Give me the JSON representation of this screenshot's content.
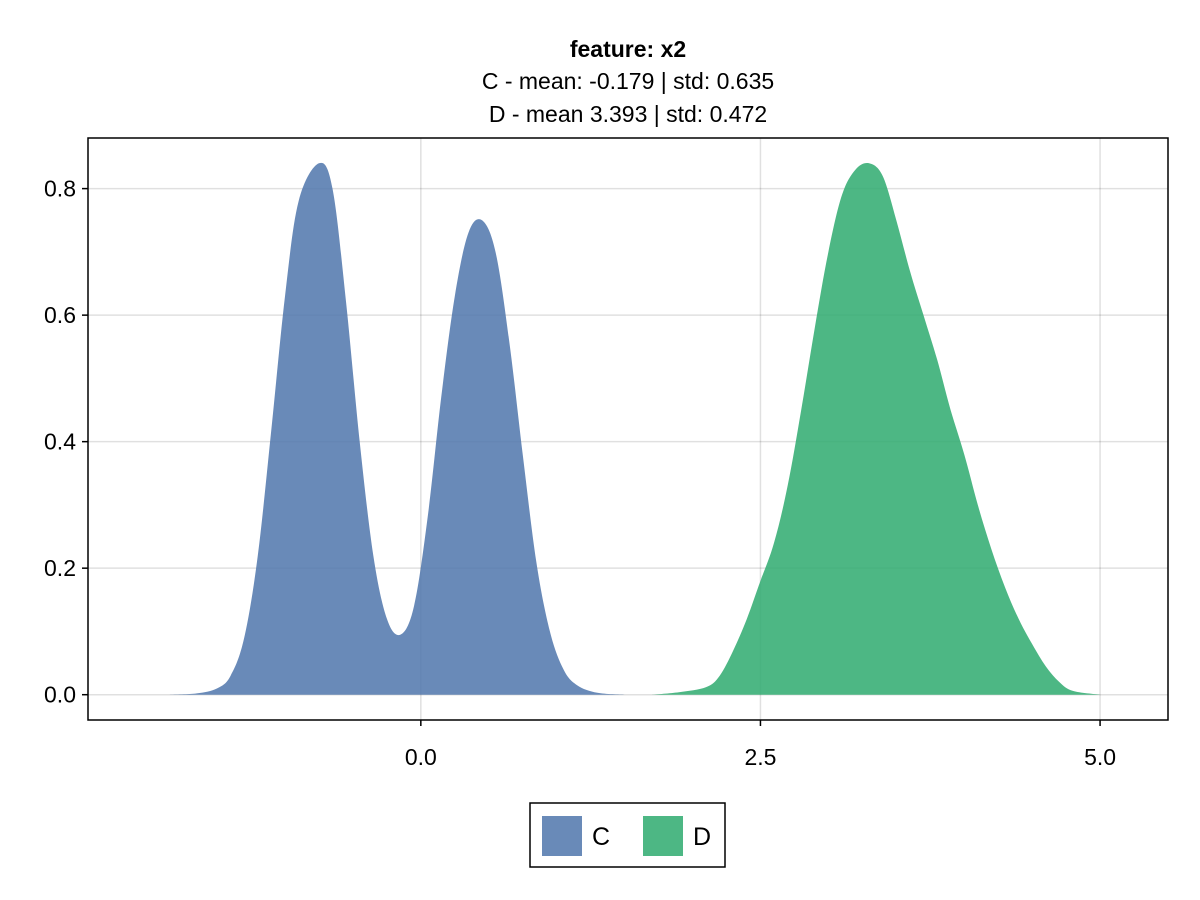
{
  "chart_data": {
    "type": "area",
    "title": "feature: x2",
    "subtitle_lines": [
      "C - mean: -0.179 | std: 0.635",
      "D - mean 3.393 | std: 0.472"
    ],
    "xlabel": "",
    "ylabel": "",
    "xlim": [
      -2.45,
      5.5
    ],
    "ylim": [
      -0.04,
      0.88
    ],
    "x_ticks": [
      0.0,
      2.5,
      5.0
    ],
    "x_tick_labels": [
      "0.0",
      "2.5",
      "5.0"
    ],
    "y_ticks": [
      0.0,
      0.2,
      0.4,
      0.6,
      0.8
    ],
    "y_tick_labels": [
      "0.0",
      "0.2",
      "0.4",
      "0.6",
      "0.8"
    ],
    "grid": true,
    "legend_position": "bottom-center",
    "series": [
      {
        "name": "C",
        "color": "#4f76ab",
        "points": [
          [
            -1.85,
            0.0
          ],
          [
            -1.65,
            0.002
          ],
          [
            -1.5,
            0.01
          ],
          [
            -1.4,
            0.03
          ],
          [
            -1.3,
            0.09
          ],
          [
            -1.2,
            0.22
          ],
          [
            -1.1,
            0.42
          ],
          [
            -1.0,
            0.63
          ],
          [
            -0.9,
            0.78
          ],
          [
            -0.75,
            0.84
          ],
          [
            -0.65,
            0.8
          ],
          [
            -0.55,
            0.62
          ],
          [
            -0.45,
            0.4
          ],
          [
            -0.35,
            0.22
          ],
          [
            -0.25,
            0.12
          ],
          [
            -0.15,
            0.095
          ],
          [
            -0.05,
            0.14
          ],
          [
            0.05,
            0.28
          ],
          [
            0.15,
            0.47
          ],
          [
            0.25,
            0.63
          ],
          [
            0.35,
            0.73
          ],
          [
            0.45,
            0.75
          ],
          [
            0.55,
            0.7
          ],
          [
            0.65,
            0.56
          ],
          [
            0.75,
            0.38
          ],
          [
            0.85,
            0.21
          ],
          [
            0.95,
            0.1
          ],
          [
            1.05,
            0.04
          ],
          [
            1.15,
            0.015
          ],
          [
            1.3,
            0.003
          ],
          [
            1.5,
            0.0
          ]
        ]
      },
      {
        "name": "D",
        "color": "#2eaa6e",
        "points": [
          [
            1.7,
            0.0
          ],
          [
            1.9,
            0.004
          ],
          [
            2.1,
            0.012
          ],
          [
            2.2,
            0.03
          ],
          [
            2.3,
            0.07
          ],
          [
            2.4,
            0.12
          ],
          [
            2.5,
            0.18
          ],
          [
            2.6,
            0.24
          ],
          [
            2.7,
            0.33
          ],
          [
            2.8,
            0.45
          ],
          [
            2.9,
            0.58
          ],
          [
            3.0,
            0.7
          ],
          [
            3.1,
            0.79
          ],
          [
            3.2,
            0.83
          ],
          [
            3.3,
            0.84
          ],
          [
            3.4,
            0.82
          ],
          [
            3.5,
            0.75
          ],
          [
            3.6,
            0.67
          ],
          [
            3.7,
            0.6
          ],
          [
            3.8,
            0.53
          ],
          [
            3.9,
            0.45
          ],
          [
            4.0,
            0.38
          ],
          [
            4.1,
            0.3
          ],
          [
            4.2,
            0.23
          ],
          [
            4.3,
            0.17
          ],
          [
            4.4,
            0.12
          ],
          [
            4.5,
            0.08
          ],
          [
            4.6,
            0.045
          ],
          [
            4.7,
            0.02
          ],
          [
            4.8,
            0.006
          ],
          [
            5.0,
            0.0
          ]
        ]
      }
    ]
  }
}
